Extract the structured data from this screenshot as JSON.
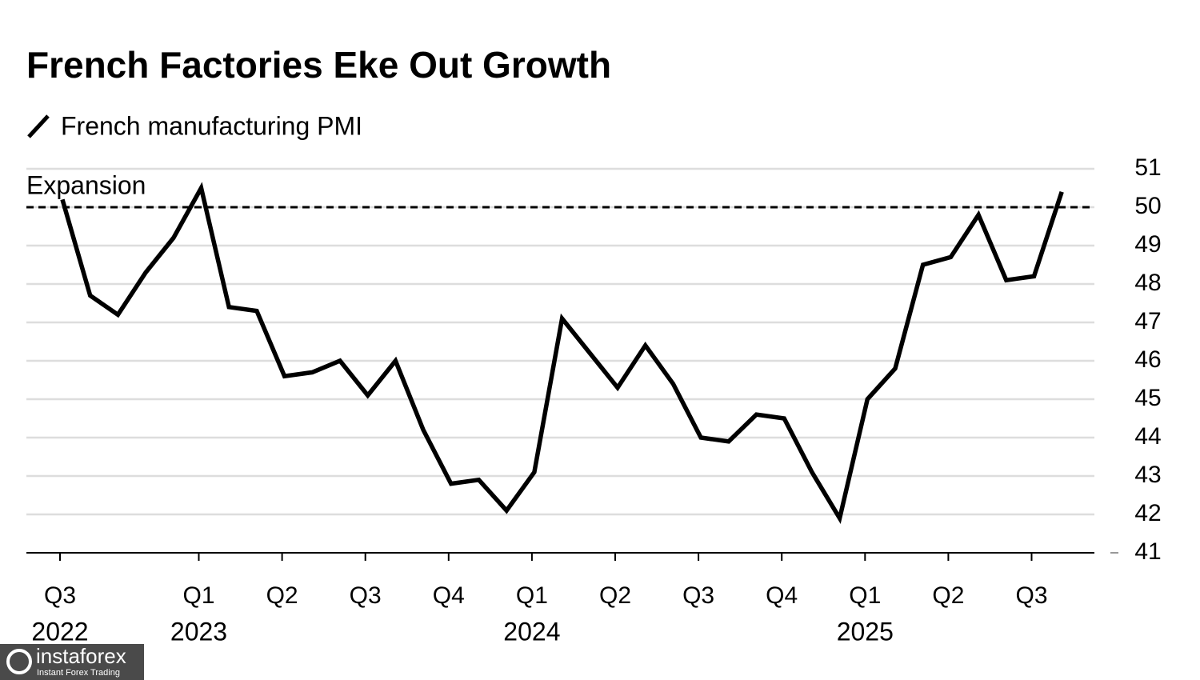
{
  "chart_data": {
    "type": "line",
    "title": "French Factories Eke Out Growth",
    "categories": [
      "Q3",
      null,
      null,
      null,
      null,
      "Q1",
      null,
      null,
      "Q2",
      null,
      null,
      "Q3",
      null,
      null,
      "Q4",
      null,
      null,
      "Q1",
      null,
      null,
      "Q2",
      null,
      null,
      "Q3",
      null,
      null,
      "Q4",
      null,
      null,
      "Q1",
      null,
      null,
      "Q2",
      null,
      null,
      "Q3",
      null
    ],
    "years": [
      "2022",
      null,
      null,
      null,
      null,
      "2023",
      null,
      null,
      null,
      null,
      null,
      null,
      null,
      null,
      null,
      null,
      null,
      "2024",
      null,
      null,
      null,
      null,
      null,
      null,
      null,
      null,
      null,
      null,
      null,
      "2025",
      null,
      null,
      null,
      null,
      null,
      null,
      null
    ],
    "series": [
      {
        "name": "French manufacturing PMI",
        "color": "#000000",
        "values": [
          50.2,
          47.7,
          47.2,
          48.3,
          49.2,
          50.5,
          47.4,
          47.3,
          45.6,
          45.7,
          46.0,
          45.1,
          46.0,
          44.2,
          42.8,
          42.9,
          42.1,
          43.1,
          47.1,
          46.2,
          45.3,
          46.4,
          45.4,
          44.0,
          43.9,
          44.6,
          44.5,
          43.1,
          41.9,
          45.0,
          45.8,
          48.5,
          48.7,
          49.8,
          48.1,
          48.2,
          50.4
        ]
      }
    ],
    "ylim": [
      41,
      51
    ],
    "yticks": [
      41,
      42,
      43,
      44,
      45,
      46,
      47,
      48,
      49,
      50,
      51
    ],
    "grid": true,
    "reference_line": {
      "value": 50,
      "label": "Expansion"
    }
  },
  "watermark": {
    "brand": "instaforex",
    "tagline": "Instant Forex Trading"
  }
}
